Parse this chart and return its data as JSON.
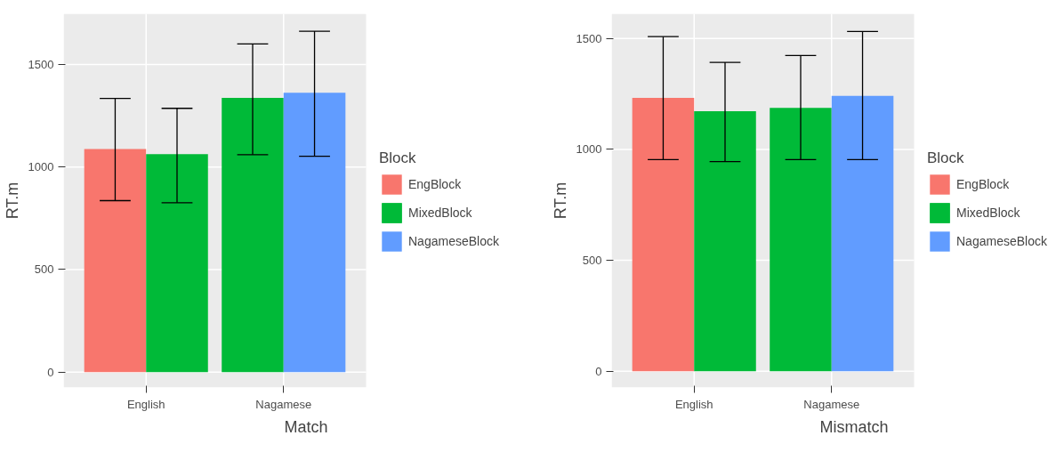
{
  "chart_data": [
    {
      "type": "bar",
      "xlabel": "Match",
      "ylabel": "RT.m",
      "legend_title": "Block",
      "legend": "right",
      "grid": true,
      "categories": [
        "English",
        "Nagamese"
      ],
      "ylim": [
        -75,
        1747
      ],
      "yticks": [
        0,
        500,
        1000,
        1500
      ],
      "series": [
        {
          "name": "EngBlock",
          "color": "#f8766d",
          "values": [
            1088,
            null
          ],
          "errors": [
            [
              836,
              1334
            ],
            null
          ]
        },
        {
          "name": "MixedBlock",
          "color": "#00ba38",
          "values": [
            1063,
            1337
          ],
          "errors": [
            [
              826,
              1286
            ],
            [
              1060,
              1600
            ]
          ]
        },
        {
          "name": "NagameseBlock",
          "color": "#619cff",
          "values": [
            null,
            1362
          ],
          "errors": [
            null,
            [
              1052,
              1662
            ]
          ]
        }
      ]
    },
    {
      "type": "bar",
      "xlabel": "Mismatch",
      "ylabel": "RT.m",
      "legend_title": "Block",
      "legend": "right",
      "grid": true,
      "categories": [
        "English",
        "Nagamese"
      ],
      "ylim": [
        -73,
        1611
      ],
      "yticks": [
        0,
        500,
        1000,
        1500
      ],
      "series": [
        {
          "name": "EngBlock",
          "color": "#f8766d",
          "values": [
            1232,
            null
          ],
          "errors": [
            [
              954,
              1508
            ],
            null
          ]
        },
        {
          "name": "MixedBlock",
          "color": "#00ba38",
          "values": [
            1172,
            1187
          ],
          "errors": [
            [
              945,
              1392
            ],
            [
              954,
              1423
            ]
          ]
        },
        {
          "name": "NagameseBlock",
          "color": "#619cff",
          "values": [
            null,
            1241
          ],
          "errors": [
            null,
            [
              954,
              1531
            ]
          ]
        }
      ]
    }
  ]
}
